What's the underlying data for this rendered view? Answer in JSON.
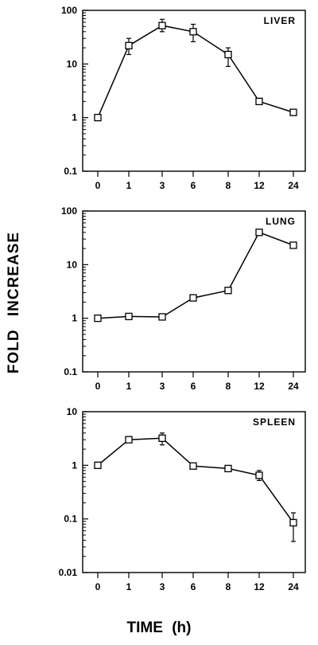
{
  "figure": {
    "ylabel": "FOLD  INCREASE",
    "xlabel": "TIME  (h)"
  },
  "chart_data": [
    {
      "type": "line",
      "title": "LIVER",
      "xscale": "categorical",
      "yscale": "log",
      "categories": [
        "0",
        "1",
        "3",
        "6",
        "8",
        "12",
        "24"
      ],
      "ylim": [
        0.1,
        100
      ],
      "yticks": [
        0.1,
        1,
        10,
        100
      ],
      "ytick_labels": [
        "0.1",
        "1",
        "10",
        "100"
      ],
      "series": [
        {
          "values": [
            1.0,
            22,
            52,
            40,
            15,
            2.0,
            1.25
          ],
          "err_low": [
            1.0,
            15,
            40,
            26,
            9,
            2.0,
            1.25
          ],
          "err_high": [
            1.0,
            30,
            68,
            55,
            20,
            2.0,
            1.25
          ],
          "marker": "open-square"
        }
      ]
    },
    {
      "type": "line",
      "title": "LUNG",
      "xscale": "categorical",
      "yscale": "log",
      "categories": [
        "0",
        "1",
        "3",
        "6",
        "8",
        "12",
        "24"
      ],
      "ylim": [
        0.1,
        100
      ],
      "yticks": [
        0.1,
        1,
        10,
        100
      ],
      "ytick_labels": [
        "0.1",
        "1",
        "10",
        "100"
      ],
      "series": [
        {
          "values": [
            1.0,
            1.08,
            1.06,
            2.4,
            3.3,
            40,
            23
          ],
          "err_low": [
            1.0,
            1.08,
            1.06,
            2.4,
            3.3,
            40,
            23
          ],
          "err_high": [
            1.0,
            1.08,
            1.06,
            2.4,
            3.3,
            40,
            23
          ],
          "marker": "open-square"
        }
      ]
    },
    {
      "type": "line",
      "title": "SPLEEN",
      "xscale": "categorical",
      "yscale": "log",
      "categories": [
        "0",
        "1",
        "3",
        "6",
        "8",
        "12",
        "24"
      ],
      "ylim": [
        0.01,
        10
      ],
      "yticks": [
        0.01,
        0.1,
        1,
        10
      ],
      "ytick_labels": [
        "0.01",
        "0.1",
        "1",
        "10"
      ],
      "series": [
        {
          "values": [
            1.0,
            3.0,
            3.2,
            0.97,
            0.87,
            0.65,
            0.085
          ],
          "err_low": [
            1.0,
            3.0,
            2.4,
            0.97,
            0.78,
            0.52,
            0.038
          ],
          "err_high": [
            1.0,
            3.0,
            4.0,
            0.97,
            0.95,
            0.8,
            0.13
          ],
          "marker": "open-square"
        }
      ]
    }
  ]
}
